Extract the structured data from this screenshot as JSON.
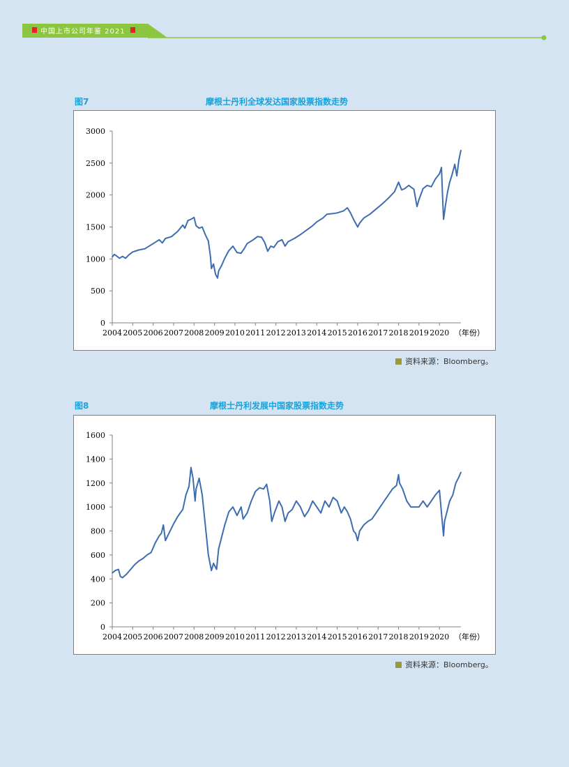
{
  "header": {
    "title": "中国上市公司年鉴 2021",
    "bar_color": "#8cc63f",
    "accent_color": "#e8202a"
  },
  "figures": [
    {
      "label": "图7",
      "title": "摩根士丹利全球发达国家股票指数走势",
      "source": "资料来源：Bloomberg。",
      "chart_data": {
        "type": "line",
        "title": "摩根士丹利全球发达国家股票指数走势",
        "xlabel": "（年份）",
        "ylabel": "",
        "x_ticks": [
          "2004",
          "2005",
          "2006",
          "2007",
          "2008",
          "2009",
          "2010",
          "2011",
          "2012",
          "2013",
          "2014",
          "2015",
          "2016",
          "2017",
          "2018",
          "2019",
          "2020"
        ],
        "y_ticks": [
          0,
          500,
          1000,
          1500,
          2000,
          2500,
          3000
        ],
        "xlim": [
          2004,
          2021.05
        ],
        "ylim": [
          0,
          3000
        ],
        "line_color": "#3c6db0",
        "grid": false,
        "x": [
          2004.0,
          2004.1,
          2004.2,
          2004.35,
          2004.5,
          2004.65,
          2004.8,
          2005.0,
          2005.3,
          2005.6,
          2006.0,
          2006.3,
          2006.45,
          2006.6,
          2006.9,
          2007.2,
          2007.45,
          2007.55,
          2007.7,
          2007.85,
          2008.0,
          2008.1,
          2008.25,
          2008.4,
          2008.55,
          2008.7,
          2008.8,
          2008.85,
          2008.95,
          2009.05,
          2009.15,
          2009.2,
          2009.35,
          2009.5,
          2009.7,
          2009.9,
          2010.1,
          2010.3,
          2010.45,
          2010.6,
          2010.9,
          2011.1,
          2011.3,
          2011.45,
          2011.6,
          2011.75,
          2011.9,
          2012.1,
          2012.3,
          2012.45,
          2012.6,
          2012.9,
          2013.2,
          2013.5,
          2013.8,
          2014.0,
          2014.3,
          2014.5,
          2014.8,
          2015.0,
          2015.3,
          2015.5,
          2015.65,
          2015.8,
          2016.0,
          2016.1,
          2016.3,
          2016.6,
          2016.9,
          2017.2,
          2017.5,
          2017.8,
          2018.0,
          2018.05,
          2018.15,
          2018.3,
          2018.5,
          2018.75,
          2018.9,
          2019.0,
          2019.2,
          2019.4,
          2019.6,
          2019.8,
          2020.0,
          2020.1,
          2020.15,
          2020.2,
          2020.3,
          2020.4,
          2020.5,
          2020.6,
          2020.75,
          2020.85,
          2020.95,
          2021.05
        ],
        "y": [
          1030,
          1070,
          1050,
          1010,
          1040,
          1010,
          1060,
          1110,
          1140,
          1160,
          1240,
          1300,
          1250,
          1320,
          1350,
          1430,
          1530,
          1480,
          1600,
          1620,
          1650,
          1520,
          1480,
          1500,
          1380,
          1280,
          1040,
          850,
          920,
          760,
          700,
          810,
          900,
          1010,
          1130,
          1200,
          1100,
          1090,
          1160,
          1240,
          1300,
          1350,
          1340,
          1260,
          1120,
          1200,
          1180,
          1270,
          1300,
          1200,
          1270,
          1320,
          1380,
          1450,
          1520,
          1580,
          1640,
          1700,
          1710,
          1720,
          1750,
          1800,
          1720,
          1620,
          1500,
          1560,
          1640,
          1700,
          1780,
          1860,
          1950,
          2050,
          2200,
          2160,
          2080,
          2100,
          2150,
          2090,
          1820,
          1930,
          2100,
          2150,
          2130,
          2250,
          2330,
          2430,
          2000,
          1620,
          1850,
          2050,
          2200,
          2300,
          2480,
          2300,
          2550,
          2700
        ]
      }
    },
    {
      "label": "图8",
      "title": "摩根士丹利发展中国家股票指数走势",
      "source": "资料来源：Bloomberg。",
      "chart_data": {
        "type": "line",
        "title": "摩根士丹利发展中国家股票指数走势",
        "xlabel": "（年份）",
        "ylabel": "",
        "x_ticks": [
          "2004",
          "2005",
          "2006",
          "2007",
          "2008",
          "2009",
          "2010",
          "2011",
          "2012",
          "2013",
          "2014",
          "2015",
          "2016",
          "2017",
          "2018",
          "2019",
          "2020"
        ],
        "y_ticks": [
          0,
          200,
          400,
          600,
          800,
          1000,
          1200,
          1400,
          1600
        ],
        "xlim": [
          2004,
          2021.05
        ],
        "ylim": [
          0,
          1600
        ],
        "line_color": "#3c6db0",
        "grid": false,
        "x": [
          2004.0,
          2004.15,
          2004.3,
          2004.4,
          2004.5,
          2004.7,
          2004.9,
          2005.1,
          2005.3,
          2005.5,
          2005.7,
          2005.9,
          2006.1,
          2006.3,
          2006.4,
          2006.5,
          2006.6,
          2006.8,
          2007.0,
          2007.2,
          2007.45,
          2007.6,
          2007.75,
          2007.85,
          2007.95,
          2008.05,
          2008.1,
          2008.25,
          2008.4,
          2008.55,
          2008.7,
          2008.85,
          2008.95,
          2009.1,
          2009.2,
          2009.35,
          2009.5,
          2009.7,
          2009.9,
          2010.1,
          2010.3,
          2010.4,
          2010.6,
          2010.8,
          2011.0,
          2011.2,
          2011.4,
          2011.55,
          2011.7,
          2011.8,
          2011.95,
          2012.15,
          2012.3,
          2012.45,
          2012.6,
          2012.8,
          2013.0,
          2013.2,
          2013.4,
          2013.6,
          2013.8,
          2014.0,
          2014.2,
          2014.4,
          2014.6,
          2014.8,
          2015.0,
          2015.2,
          2015.35,
          2015.5,
          2015.65,
          2015.8,
          2015.9,
          2016.0,
          2016.1,
          2016.3,
          2016.5,
          2016.7,
          2016.9,
          2017.1,
          2017.3,
          2017.5,
          2017.7,
          2017.9,
          2018.0,
          2018.05,
          2018.2,
          2018.4,
          2018.6,
          2018.8,
          2019.0,
          2019.2,
          2019.4,
          2019.6,
          2019.8,
          2020.0,
          2020.1,
          2020.2,
          2020.25,
          2020.35,
          2020.5,
          2020.65,
          2020.8,
          2020.95,
          2021.05
        ],
        "y": [
          450,
          470,
          480,
          420,
          410,
          440,
          480,
          520,
          550,
          570,
          600,
          620,
          700,
          760,
          780,
          850,
          720,
          790,
          860,
          920,
          980,
          1100,
          1170,
          1330,
          1240,
          1050,
          1150,
          1240,
          1100,
          850,
          600,
          470,
          530,
          480,
          650,
          750,
          850,
          960,
          1000,
          930,
          1000,
          900,
          950,
          1050,
          1130,
          1160,
          1150,
          1190,
          1050,
          880,
          960,
          1050,
          1000,
          880,
          950,
          980,
          1050,
          1000,
          920,
          970,
          1050,
          1000,
          950,
          1050,
          1000,
          1080,
          1050,
          950,
          1000,
          960,
          900,
          800,
          780,
          720,
          800,
          850,
          880,
          900,
          950,
          1000,
          1050,
          1100,
          1150,
          1180,
          1270,
          1200,
          1150,
          1050,
          1000,
          1000,
          1000,
          1050,
          1000,
          1050,
          1100,
          1140,
          950,
          760,
          880,
          950,
          1050,
          1100,
          1200,
          1250,
          1290
        ]
      }
    }
  ]
}
